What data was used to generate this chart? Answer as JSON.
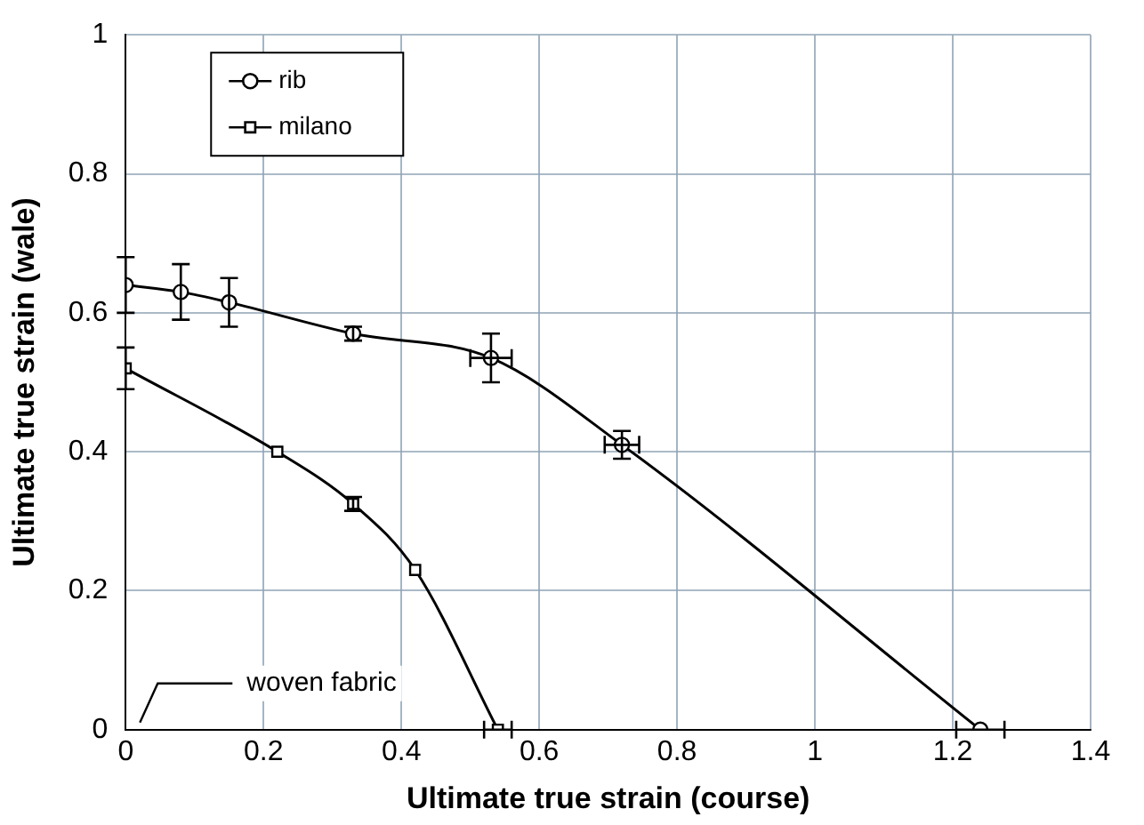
{
  "chart_data": {
    "type": "line",
    "xlabel": "Ultimate true strain (course)",
    "ylabel": "Ultimate true strain (wale)",
    "xlim": [
      0,
      1.4
    ],
    "xticks": [
      0,
      0.2,
      0.4,
      0.6,
      0.8,
      1,
      1.2,
      1.4
    ],
    "ylim": [
      0,
      1
    ],
    "yticks": [
      0,
      0.2,
      0.4,
      0.6,
      0.8,
      1
    ],
    "grid": true,
    "legend": "top left",
    "series": [
      {
        "name": "rib",
        "color": "#000000",
        "marker": "circle",
        "x": [
          0,
          0.08,
          0.15,
          0.33,
          0.53,
          0.72,
          1.24
        ],
        "values": [
          0.64,
          0.63,
          0.615,
          0.57,
          0.535,
          0.41,
          0
        ],
        "errors": [
          0.04,
          0.04,
          0.035,
          0.01,
          0.035,
          0.02,
          null
        ],
        "xerrors": [
          null,
          null,
          null,
          null,
          0.03,
          0.025,
          0.035
        ]
      },
      {
        "name": "milano",
        "color": "#000000",
        "marker": "square",
        "x": [
          0,
          0.22,
          0.33,
          0.42,
          0.54
        ],
        "values": [
          0.52,
          0.4,
          0.325,
          0.23,
          0
        ],
        "errors": [
          0.03,
          null,
          0.01,
          null,
          null
        ],
        "xerrors": [
          null,
          null,
          null,
          null,
          0.02
        ]
      }
    ],
    "annotations": [
      "woven fabric"
    ]
  }
}
